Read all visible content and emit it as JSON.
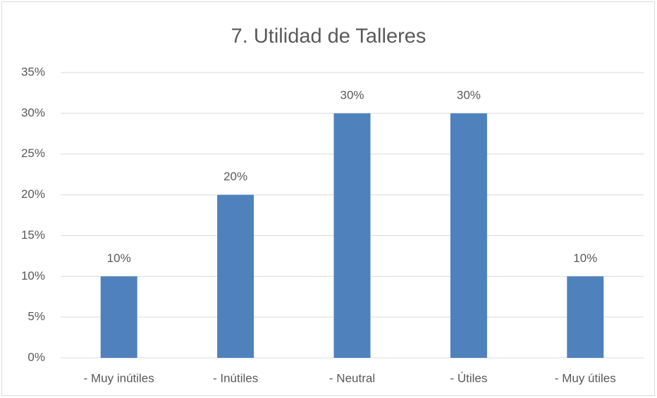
{
  "chart_data": {
    "type": "bar",
    "title": "7. Utilidad de Talleres",
    "categories": [
      "- Muy inútiles",
      "- Inútiles",
      "- Neutral",
      "- Útiles",
      "- Muy útiles"
    ],
    "values": [
      10,
      20,
      30,
      30,
      10
    ],
    "value_labels": [
      "10%",
      "20%",
      "30%",
      "30%",
      "10%"
    ],
    "color": "#4f81bd",
    "ylim": [
      0,
      35
    ],
    "yticks": [
      {
        "value": 0,
        "label": "0%"
      },
      {
        "value": 5,
        "label": "5%"
      },
      {
        "value": 10,
        "label": "10%"
      },
      {
        "value": 15,
        "label": "15%"
      },
      {
        "value": 20,
        "label": "20%"
      },
      {
        "value": 25,
        "label": "25%"
      },
      {
        "value": 30,
        "label": "30%"
      },
      {
        "value": 35,
        "label": "35%"
      }
    ],
    "grid": true
  }
}
